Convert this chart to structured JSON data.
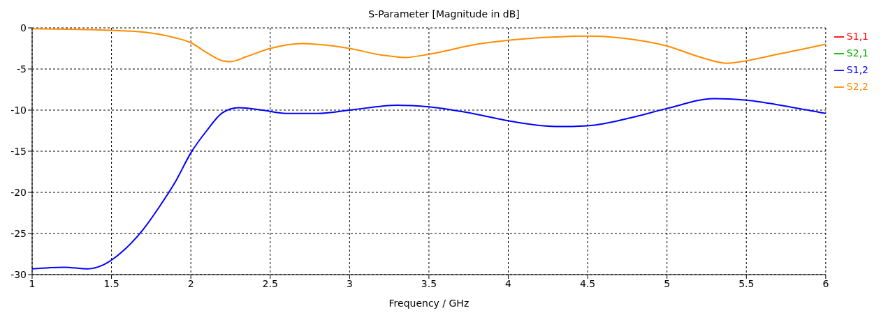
{
  "chart_data": {
    "type": "line",
    "title": "S-Parameter [Magnitude in dB]",
    "xlabel": "Frequency / GHz",
    "xlim": [
      1,
      6
    ],
    "xticks": [
      1,
      1.5,
      2,
      2.5,
      3,
      3.5,
      4,
      4.5,
      5,
      5.5,
      6
    ],
    "ylim": [
      -30,
      0
    ],
    "yticks": [
      -30,
      -25,
      -20,
      -15,
      -10,
      -5,
      0
    ],
    "grid": true,
    "legend": "top right",
    "marker": "none",
    "line_style": "solid",
    "series": [
      {
        "name": "S1,1",
        "color": "#ff0000"
      },
      {
        "name": "S2,1",
        "color": "#00b000"
      },
      {
        "name": "S1,2",
        "color": "#0000ff",
        "x": [
          1,
          1.2,
          1.35,
          1.45,
          1.55,
          1.7,
          1.8,
          1.9,
          2,
          2.1,
          2.2,
          2.3,
          2.45,
          2.6,
          2.8,
          3,
          3.3,
          3.5,
          3.8,
          4,
          4.3,
          4.5,
          4.8,
          5,
          5.3,
          5.5,
          5.8,
          6
        ],
        "values": [
          -29.3,
          -29.1,
          -29.3,
          -28.8,
          -27.5,
          -24.5,
          -21.8,
          -18.8,
          -15.2,
          -12.5,
          -10.3,
          -9.7,
          -10,
          -10.4,
          -10.4,
          -10,
          -9.4,
          -9.6,
          -10.5,
          -11.3,
          -12,
          -11.9,
          -10.8,
          -9.8,
          -8.6,
          -8.8,
          -9.7,
          -10.4
        ]
      },
      {
        "name": "S2,2",
        "color": "#ff8c00",
        "x": [
          1,
          1.5,
          1.7,
          1.9,
          2,
          2.1,
          2.2,
          2.25,
          2.35,
          2.5,
          2.7,
          2.9,
          3,
          3.2,
          3.35,
          3.5,
          3.8,
          4,
          4.3,
          4.5,
          4.7,
          5,
          5.2,
          5.38,
          5.5,
          5.7,
          6
        ],
        "values": [
          -0.1,
          -0.3,
          -0.5,
          -1.2,
          -1.8,
          -3,
          -4,
          -4.1,
          -3.5,
          -2.5,
          -1.9,
          -2.2,
          -2.5,
          -3.3,
          -3.6,
          -3.2,
          -2,
          -1.5,
          -1.1,
          -1,
          -1.2,
          -2.2,
          -3.5,
          -4.3,
          -4,
          -3.2,
          -2
        ]
      }
    ]
  }
}
